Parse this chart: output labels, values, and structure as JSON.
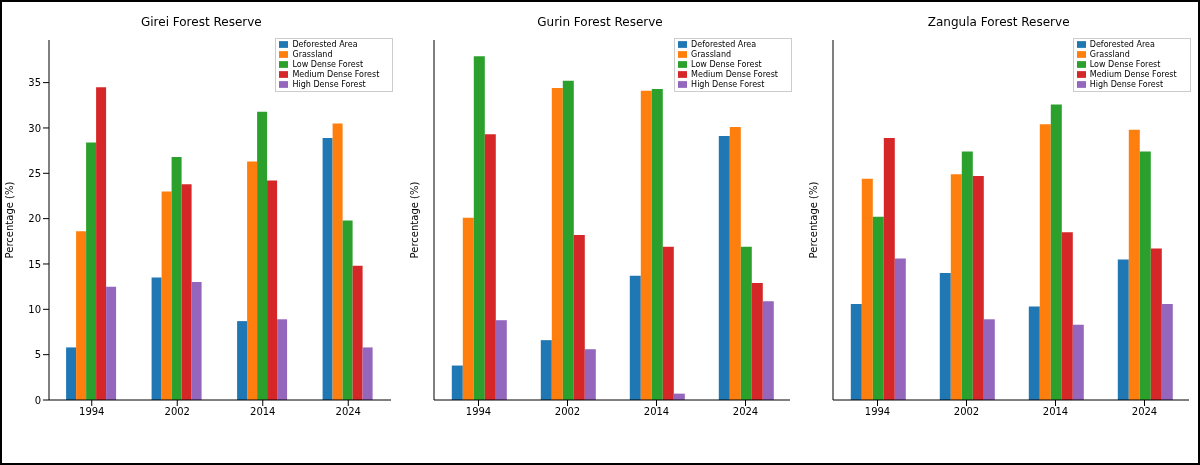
{
  "chart_data": [
    {
      "type": "bar",
      "title": "Girei Forest Reserve",
      "ylabel": "Percentage (%)",
      "categories": [
        "1994",
        "2002",
        "2014",
        "2024"
      ],
      "ylim": [
        0,
        39.7
      ],
      "yticks": [
        0,
        5,
        10,
        15,
        20,
        25,
        30,
        35
      ],
      "legend": "top right",
      "series": [
        {
          "name": "Deforested Area",
          "color": "#1f77b4",
          "values": [
            5.8,
            13.5,
            8.7,
            28.9
          ]
        },
        {
          "name": "Grassland",
          "color": "#ff7f0e",
          "values": [
            18.6,
            23.0,
            26.3,
            30.5
          ]
        },
        {
          "name": "Low Dense Forest",
          "color": "#2ca02c",
          "values": [
            28.4,
            26.8,
            31.8,
            19.8
          ]
        },
        {
          "name": "Medium Dense Forest",
          "color": "#d62728",
          "values": [
            34.5,
            23.8,
            24.2,
            14.8
          ]
        },
        {
          "name": "High Dense Forest",
          "color": "#9467bd",
          "values": [
            12.5,
            13.0,
            8.9,
            5.8
          ]
        }
      ]
    },
    {
      "type": "bar",
      "title": "Gurin Forest Reserve",
      "ylabel": "Percentage (%)",
      "categories": [
        "1994",
        "2002",
        "2014",
        "2024"
      ],
      "ylim": [
        0,
        39.7
      ],
      "yticks": [
        0,
        5,
        10,
        15,
        20,
        25,
        30,
        35
      ],
      "tick_labels": "x",
      "legend": "top right",
      "series": [
        {
          "name": "Deforested Area",
          "color": "#1f77b4",
          "values": [
            3.8,
            6.6,
            13.7,
            29.1
          ]
        },
        {
          "name": "Grassland",
          "color": "#ff7f0e",
          "values": [
            20.1,
            34.4,
            34.1,
            30.1
          ]
        },
        {
          "name": "Low Dense Forest",
          "color": "#2ca02c",
          "values": [
            37.9,
            35.2,
            34.3,
            16.9
          ]
        },
        {
          "name": "Medium Dense Forest",
          "color": "#d62728",
          "values": [
            29.3,
            18.2,
            16.9,
            12.9
          ]
        },
        {
          "name": "High Dense Forest",
          "color": "#9467bd",
          "values": [
            8.8,
            5.6,
            0.7,
            10.9
          ]
        }
      ]
    },
    {
      "type": "bar",
      "title": "Zangula Forest Reserve",
      "ylabel": "Percentage (%)",
      "categories": [
        "1994",
        "2002",
        "2014",
        "2024"
      ],
      "ylim": [
        0,
        39.7
      ],
      "yticks": [
        0,
        5,
        10,
        15,
        20,
        25,
        30,
        35
      ],
      "tick_labels": "x",
      "legend": "top right",
      "series": [
        {
          "name": "Deforested Area",
          "color": "#1f77b4",
          "values": [
            10.6,
            14.0,
            10.3,
            15.5
          ]
        },
        {
          "name": "Grassland",
          "color": "#ff7f0e",
          "values": [
            24.4,
            24.9,
            30.4,
            29.8
          ]
        },
        {
          "name": "Low Dense Forest",
          "color": "#2ca02c",
          "values": [
            20.2,
            27.4,
            32.6,
            27.4
          ]
        },
        {
          "name": "Medium Dense Forest",
          "color": "#d62728",
          "values": [
            28.9,
            24.7,
            18.5,
            16.7
          ]
        },
        {
          "name": "High Dense Forest",
          "color": "#9467bd",
          "values": [
            15.6,
            8.9,
            8.3,
            10.6
          ]
        }
      ]
    }
  ]
}
